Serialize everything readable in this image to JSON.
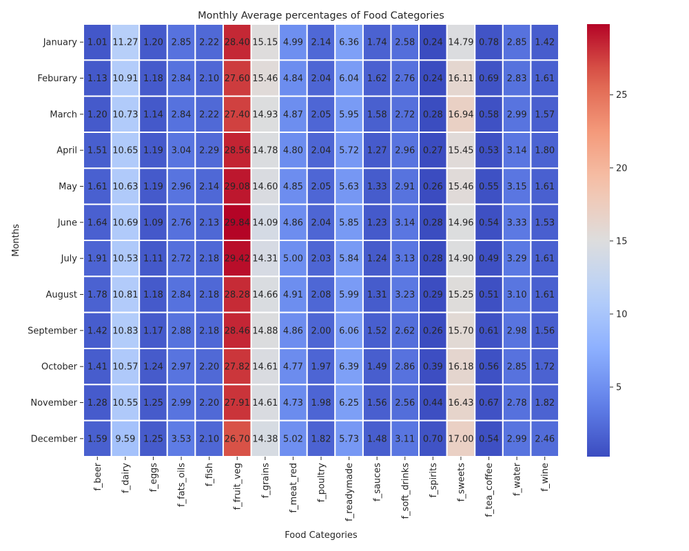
{
  "chart_data": {
    "type": "heatmap",
    "title": "Monthly Average percentages of Food Categories",
    "xlabel": "Food Categories",
    "ylabel": "Months",
    "columns": [
      "f_beer",
      "f_dairy",
      "f_eggs",
      "f_fats_oils",
      "f_fish",
      "f_fruit_veg",
      "f_grains",
      "f_meat_red",
      "f_poultry",
      "f_readymade",
      "f_sauces",
      "f_soft_drinks",
      "f_spirits",
      "f_sweets",
      "f_tea_coffee",
      "f_water",
      "f_wine"
    ],
    "rows": [
      "January",
      "Feburary",
      "March",
      "April",
      "May",
      "June",
      "July",
      "August",
      "September",
      "October",
      "November",
      "December"
    ],
    "values": [
      [
        "1.01",
        "11.27",
        "1.20",
        "2.85",
        "2.22",
        "28.40",
        "15.15",
        "4.99",
        "2.14",
        "6.36",
        "1.74",
        "2.58",
        "0.24",
        "14.79",
        "0.78",
        "2.85",
        "1.42"
      ],
      [
        "1.13",
        "10.91",
        "1.18",
        "2.84",
        "2.10",
        "27.60",
        "15.46",
        "4.84",
        "2.04",
        "6.04",
        "1.62",
        "2.76",
        "0.24",
        "16.11",
        "0.69",
        "2.83",
        "1.61"
      ],
      [
        "1.20",
        "10.73",
        "1.14",
        "2.84",
        "2.22",
        "27.40",
        "14.93",
        "4.87",
        "2.05",
        "5.95",
        "1.58",
        "2.72",
        "0.28",
        "16.94",
        "0.58",
        "2.99",
        "1.57"
      ],
      [
        "1.51",
        "10.65",
        "1.19",
        "3.04",
        "2.29",
        "28.56",
        "14.78",
        "4.80",
        "2.04",
        "5.72",
        "1.27",
        "2.96",
        "0.27",
        "15.45",
        "0.53",
        "3.14",
        "1.80"
      ],
      [
        "1.61",
        "10.63",
        "1.19",
        "2.96",
        "2.14",
        "29.08",
        "14.60",
        "4.85",
        "2.05",
        "5.63",
        "1.33",
        "2.91",
        "0.26",
        "15.46",
        "0.55",
        "3.15",
        "1.61"
      ],
      [
        "1.64",
        "10.69",
        "1.09",
        "2.76",
        "2.13",
        "29.84",
        "14.09",
        "4.86",
        "2.04",
        "5.85",
        "1.23",
        "3.14",
        "0.28",
        "14.96",
        "0.54",
        "3.33",
        "1.53"
      ],
      [
        "1.91",
        "10.53",
        "1.11",
        "2.72",
        "2.18",
        "29.42",
        "14.31",
        "5.00",
        "2.03",
        "5.84",
        "1.24",
        "3.13",
        "0.28",
        "14.90",
        "0.49",
        "3.29",
        "1.61"
      ],
      [
        "1.78",
        "10.81",
        "1.18",
        "2.84",
        "2.18",
        "28.28",
        "14.66",
        "4.91",
        "2.08",
        "5.99",
        "1.31",
        "3.23",
        "0.29",
        "15.25",
        "0.51",
        "3.10",
        "1.61"
      ],
      [
        "1.42",
        "10.83",
        "1.17",
        "2.88",
        "2.18",
        "28.46",
        "14.88",
        "4.86",
        "2.00",
        "6.06",
        "1.52",
        "2.62",
        "0.26",
        "15.70",
        "0.61",
        "2.98",
        "1.56"
      ],
      [
        "1.41",
        "10.57",
        "1.24",
        "2.97",
        "2.20",
        "27.82",
        "14.61",
        "4.77",
        "1.97",
        "6.39",
        "1.49",
        "2.86",
        "0.39",
        "16.18",
        "0.56",
        "2.85",
        "1.72"
      ],
      [
        "1.28",
        "10.55",
        "1.25",
        "2.99",
        "2.20",
        "27.91",
        "14.61",
        "4.73",
        "1.98",
        "6.25",
        "1.56",
        "2.56",
        "0.44",
        "16.43",
        "0.67",
        "2.78",
        "1.82"
      ],
      [
        "1.59",
        "9.59",
        "1.25",
        "3.53",
        "2.10",
        "26.70",
        "14.38",
        "5.02",
        "1.82",
        "5.73",
        "1.48",
        "3.11",
        "0.70",
        "17.00",
        "0.54",
        "2.99",
        "2.46"
      ]
    ],
    "colorbar": {
      "colormap": "coolwarm",
      "vmin": 0.24,
      "vmax": 29.84,
      "ticks": [
        "5",
        "10",
        "15",
        "20",
        "25"
      ]
    },
    "annotations": "cell values shown"
  }
}
